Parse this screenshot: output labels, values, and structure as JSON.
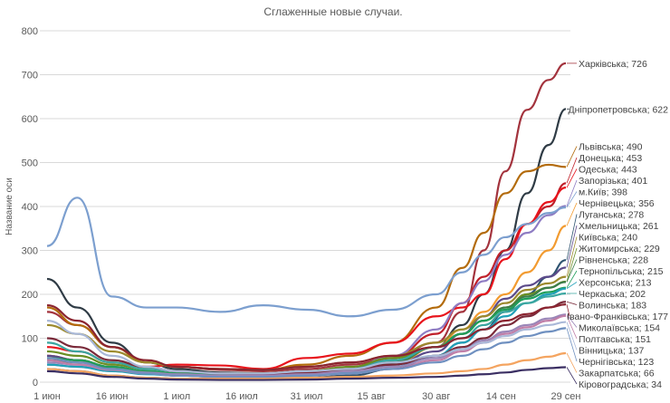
{
  "chart_data": {
    "type": "line",
    "title": "Сглаженные новые случаи.",
    "ylabel": "Название оси",
    "xlabel": "",
    "ylim": [
      0,
      800
    ],
    "yticks": [
      0,
      100,
      200,
      300,
      400,
      500,
      600,
      700,
      800
    ],
    "grid": true,
    "legend": "data labels at line ends (right)",
    "xrange": [
      "2020-06-01",
      "2020-09-29"
    ],
    "xticks": [
      {
        "date": "2020-06-01",
        "label": "1 июн"
      },
      {
        "date": "2020-06-16",
        "label": "16 июн"
      },
      {
        "date": "2020-07-01",
        "label": "1 июл"
      },
      {
        "date": "2020-07-16",
        "label": "16 июл"
      },
      {
        "date": "2020-07-31",
        "label": "31 июл"
      },
      {
        "date": "2020-08-15",
        "label": "15 авг"
      },
      {
        "date": "2020-08-30",
        "label": "30 авг"
      },
      {
        "date": "2020-09-14",
        "label": "14 сен"
      },
      {
        "date": "2020-09-29",
        "label": "29 сен"
      }
    ],
    "x": [
      "2020-06-01",
      "2020-06-08",
      "2020-06-16",
      "2020-06-24",
      "2020-07-01",
      "2020-07-11",
      "2020-07-21",
      "2020-07-31",
      "2020-08-10",
      "2020-08-20",
      "2020-08-30",
      "2020-09-05",
      "2020-09-10",
      "2020-09-15",
      "2020-09-20",
      "2020-09-25",
      "2020-09-29"
    ],
    "series": [
      {
        "name": "Харківська",
        "label": "Харківська; 726",
        "color": "#a3333d",
        "values": [
          160,
          130,
          80,
          45,
          35,
          28,
          25,
          30,
          40,
          55,
          90,
          160,
          300,
          480,
          620,
          688,
          726
        ]
      },
      {
        "name": "Дніпропетровська",
        "label": "Дніпропетровська; 622",
        "color": "#2f3b45",
        "values": [
          235,
          170,
          90,
          45,
          30,
          22,
          20,
          25,
          30,
          45,
          80,
          130,
          200,
          300,
          430,
          540,
          622
        ]
      },
      {
        "name": "Львівська",
        "label": "Львівська; 490",
        "color": "#b36b0c",
        "values": [
          170,
          130,
          80,
          45,
          35,
          30,
          28,
          40,
          60,
          90,
          170,
          260,
          340,
          430,
          480,
          495,
          490
        ]
      },
      {
        "name": "Донецька",
        "label": "Донецька; 453",
        "color": "#c0202a",
        "values": [
          60,
          50,
          30,
          20,
          15,
          15,
          15,
          20,
          30,
          55,
          110,
          180,
          240,
          300,
          360,
          400,
          453
        ]
      },
      {
        "name": "Одеська",
        "label": "Одеська; 443",
        "color": "#e8141c",
        "values": [
          80,
          70,
          45,
          35,
          40,
          38,
          30,
          55,
          65,
          90,
          150,
          170,
          200,
          280,
          360,
          410,
          443
        ]
      },
      {
        "name": "Запорізька",
        "label": "Запорізька; 401",
        "color": "#8e7cc3",
        "values": [
          40,
          35,
          25,
          20,
          18,
          15,
          15,
          20,
          30,
          60,
          120,
          180,
          230,
          290,
          340,
          380,
          401
        ]
      },
      {
        "name": "м.Київ",
        "label": "м.Київ; 398",
        "color": "#7c9fcf",
        "values": [
          310,
          420,
          195,
          170,
          170,
          160,
          175,
          165,
          150,
          165,
          200,
          250,
          290,
          330,
          360,
          385,
          398
        ]
      },
      {
        "name": "Чернівецька",
        "label": "Чернівецька; 356",
        "color": "#f29b30",
        "values": [
          60,
          50,
          35,
          25,
          20,
          20,
          18,
          20,
          25,
          40,
          80,
          120,
          160,
          200,
          250,
          300,
          356
        ]
      },
      {
        "name": "Луганська",
        "label": "Луганська; 278",
        "color": "#2e5370",
        "values": [
          30,
          25,
          15,
          10,
          8,
          8,
          8,
          10,
          15,
          30,
          60,
          90,
          120,
          160,
          200,
          240,
          278
        ]
      },
      {
        "name": "Хмельницька",
        "label": "Хмельницька; 261",
        "color": "#5b4a8a",
        "values": [
          60,
          50,
          35,
          25,
          20,
          15,
          15,
          18,
          25,
          40,
          70,
          110,
          150,
          190,
          220,
          240,
          261
        ]
      },
      {
        "name": "Київська",
        "label": "Київська; 240",
        "color": "#9c8a2e",
        "values": [
          130,
          110,
          70,
          45,
          35,
          30,
          28,
          35,
          45,
          60,
          90,
          120,
          150,
          180,
          210,
          225,
          240
        ]
      },
      {
        "name": "Житомирська",
        "label": "Житомирська; 229",
        "color": "#6b8e23",
        "values": [
          70,
          60,
          40,
          30,
          25,
          20,
          20,
          25,
          35,
          55,
          80,
          110,
          140,
          170,
          200,
          215,
          229
        ]
      },
      {
        "name": "Рівненська",
        "label": "Рівненська; 228",
        "color": "#3c7d4a",
        "values": [
          50,
          45,
          30,
          20,
          15,
          12,
          12,
          15,
          25,
          45,
          80,
          110,
          140,
          170,
          195,
          215,
          228
        ]
      },
      {
        "name": "Тернопільська",
        "label": "Тернопільська; 215",
        "color": "#1f9e5a",
        "values": [
          55,
          50,
          35,
          25,
          20,
          18,
          18,
          22,
          30,
          50,
          80,
          110,
          140,
          165,
          190,
          205,
          215
        ]
      },
      {
        "name": "Херсонська",
        "label": "Херсонська; 213",
        "color": "#20a0b8",
        "values": [
          40,
          35,
          25,
          18,
          15,
          12,
          12,
          15,
          22,
          35,
          60,
          90,
          120,
          150,
          180,
          200,
          213
        ]
      },
      {
        "name": "Черкаська",
        "label": "Черкаська; 202",
        "color": "#3aa6a0",
        "values": [
          90,
          70,
          45,
          30,
          25,
          20,
          18,
          22,
          30,
          50,
          80,
          100,
          130,
          160,
          180,
          195,
          202
        ]
      },
      {
        "name": "Волинська",
        "label": "Волинська; 183",
        "color": "#7a2a3a",
        "values": [
          100,
          80,
          50,
          35,
          25,
          20,
          18,
          22,
          28,
          40,
          60,
          80,
          100,
          130,
          150,
          170,
          183
        ]
      },
      {
        "name": "Івано-Франківська",
        "label": "Івано-Франківська; 177",
        "color": "#8b2430",
        "values": [
          175,
          140,
          80,
          50,
          35,
          30,
          28,
          35,
          45,
          60,
          80,
          100,
          120,
          140,
          155,
          170,
          177
        ]
      },
      {
        "name": "Миколаївська",
        "label": "Миколаївська; 154",
        "color": "#9a86b8",
        "values": [
          45,
          40,
          30,
          22,
          18,
          15,
          15,
          18,
          25,
          35,
          55,
          75,
          95,
          115,
          130,
          145,
          154
        ]
      },
      {
        "name": "Полтавська",
        "label": "Полтавська; 151",
        "color": "#c07fa8",
        "values": [
          50,
          40,
          28,
          20,
          15,
          12,
          12,
          15,
          20,
          30,
          50,
          70,
          90,
          110,
          125,
          140,
          151
        ]
      },
      {
        "name": "Вінницька",
        "label": "Вінницька; 137",
        "color": "#a9b8d8",
        "values": [
          140,
          110,
          60,
          35,
          25,
          20,
          20,
          25,
          30,
          45,
          60,
          75,
          90,
          105,
          120,
          130,
          137
        ]
      },
      {
        "name": "Чернігівська",
        "label": "Чернігівська; 123",
        "color": "#6f90c0",
        "values": [
          55,
          45,
          30,
          20,
          15,
          12,
          12,
          15,
          20,
          30,
          45,
          60,
          75,
          90,
          105,
          115,
          123
        ]
      },
      {
        "name": "Закарпатська",
        "label": "Закарпатська; 66",
        "color": "#f4a460",
        "values": [
          30,
          25,
          15,
          10,
          8,
          8,
          8,
          10,
          12,
          15,
          20,
          25,
          30,
          40,
          50,
          58,
          66
        ]
      },
      {
        "name": "Кіровоградська",
        "label": "Кіровоградська; 34",
        "color": "#3b2f63",
        "values": [
          25,
          20,
          12,
          8,
          6,
          5,
          5,
          6,
          8,
          10,
          12,
          15,
          18,
          22,
          28,
          32,
          34
        ]
      }
    ]
  }
}
